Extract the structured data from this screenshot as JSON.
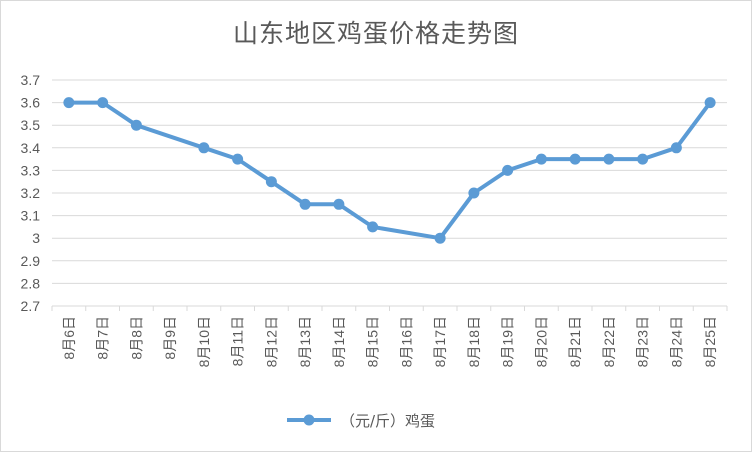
{
  "chart_data": {
    "type": "line",
    "title": "山东地区鸡蛋价格走势图",
    "xlabel": "",
    "ylabel": "",
    "categories": [
      "8月6日",
      "8月7日",
      "8月8日",
      "8月9日",
      "8月10日",
      "8月11日",
      "8月12日",
      "8月13日",
      "8月14日",
      "8月15日",
      "8月16日",
      "8月17日",
      "8月18日",
      "8月19日",
      "8月20日",
      "8月21日",
      "8月22日",
      "8月23日",
      "8月24日",
      "8月25日"
    ],
    "series": [
      {
        "name": "（元/斤）鸡蛋",
        "values": [
          3.6,
          3.6,
          3.5,
          null,
          3.4,
          3.35,
          3.25,
          3.15,
          3.15,
          3.05,
          null,
          3.0,
          3.2,
          3.3,
          3.35,
          3.35,
          3.35,
          3.35,
          3.4,
          3.6
        ]
      }
    ],
    "ylim": [
      2.7,
      3.7
    ],
    "yticks": [
      "2.7",
      "2.8",
      "2.9",
      "3",
      "3.1",
      "3.2",
      "3.3",
      "3.4",
      "3.5",
      "3.6",
      "3.7"
    ],
    "grid": true,
    "legend_position": "bottom",
    "colors": {
      "line": "#5b9bd5",
      "grid": "#d9d9d9",
      "text": "#595959"
    }
  }
}
